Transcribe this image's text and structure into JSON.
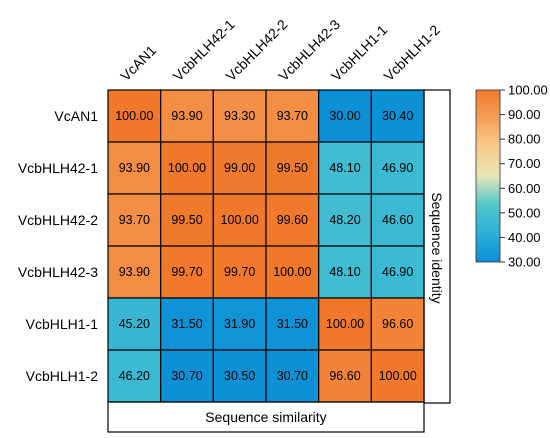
{
  "chart_data": {
    "type": "heatmap",
    "rows": [
      "VcAN1",
      "VcbHLH42-1",
      "VcbHLH42-2",
      "VcbHLH42-3",
      "VcbHLH1-1",
      "VcbHLH1-2"
    ],
    "columns": [
      "VcAN1",
      "VcbHLH42-1",
      "VcbHLH42-2",
      "VcbHLH42-3",
      "VcbHLH1-1",
      "VcbHLH1-2"
    ],
    "values": [
      [
        "100.00",
        "93.90",
        "93.30",
        "93.70",
        "30.00",
        "30.40"
      ],
      [
        "93.90",
        "100.00",
        "99.00",
        "99.50",
        "48.10",
        "46.90"
      ],
      [
        "93.70",
        "99.50",
        "100.00",
        "99.60",
        "48.20",
        "46.60"
      ],
      [
        "93.90",
        "99.70",
        "99.70",
        "100.00",
        "48.10",
        "46.90"
      ],
      [
        "45.20",
        "31.50",
        "31.90",
        "31.50",
        "100.00",
        "96.60"
      ],
      [
        "46.20",
        "30.70",
        "30.50",
        "30.70",
        "96.60",
        "100.00"
      ]
    ],
    "right_label": "Sequence identity",
    "bottom_label": "Sequence similarity",
    "colorbar": {
      "range": [
        30,
        100
      ],
      "ticks": [
        "100.00",
        "90.00",
        "80.00",
        "70.00",
        "60.00",
        "50.00",
        "40.00",
        "30.00"
      ],
      "colors": [
        "#0b8fd6",
        "#2bb0d8",
        "#52c6c9",
        "#e6e6b8",
        "#f7cc8a",
        "#f5a05a",
        "#f0782a"
      ]
    }
  }
}
